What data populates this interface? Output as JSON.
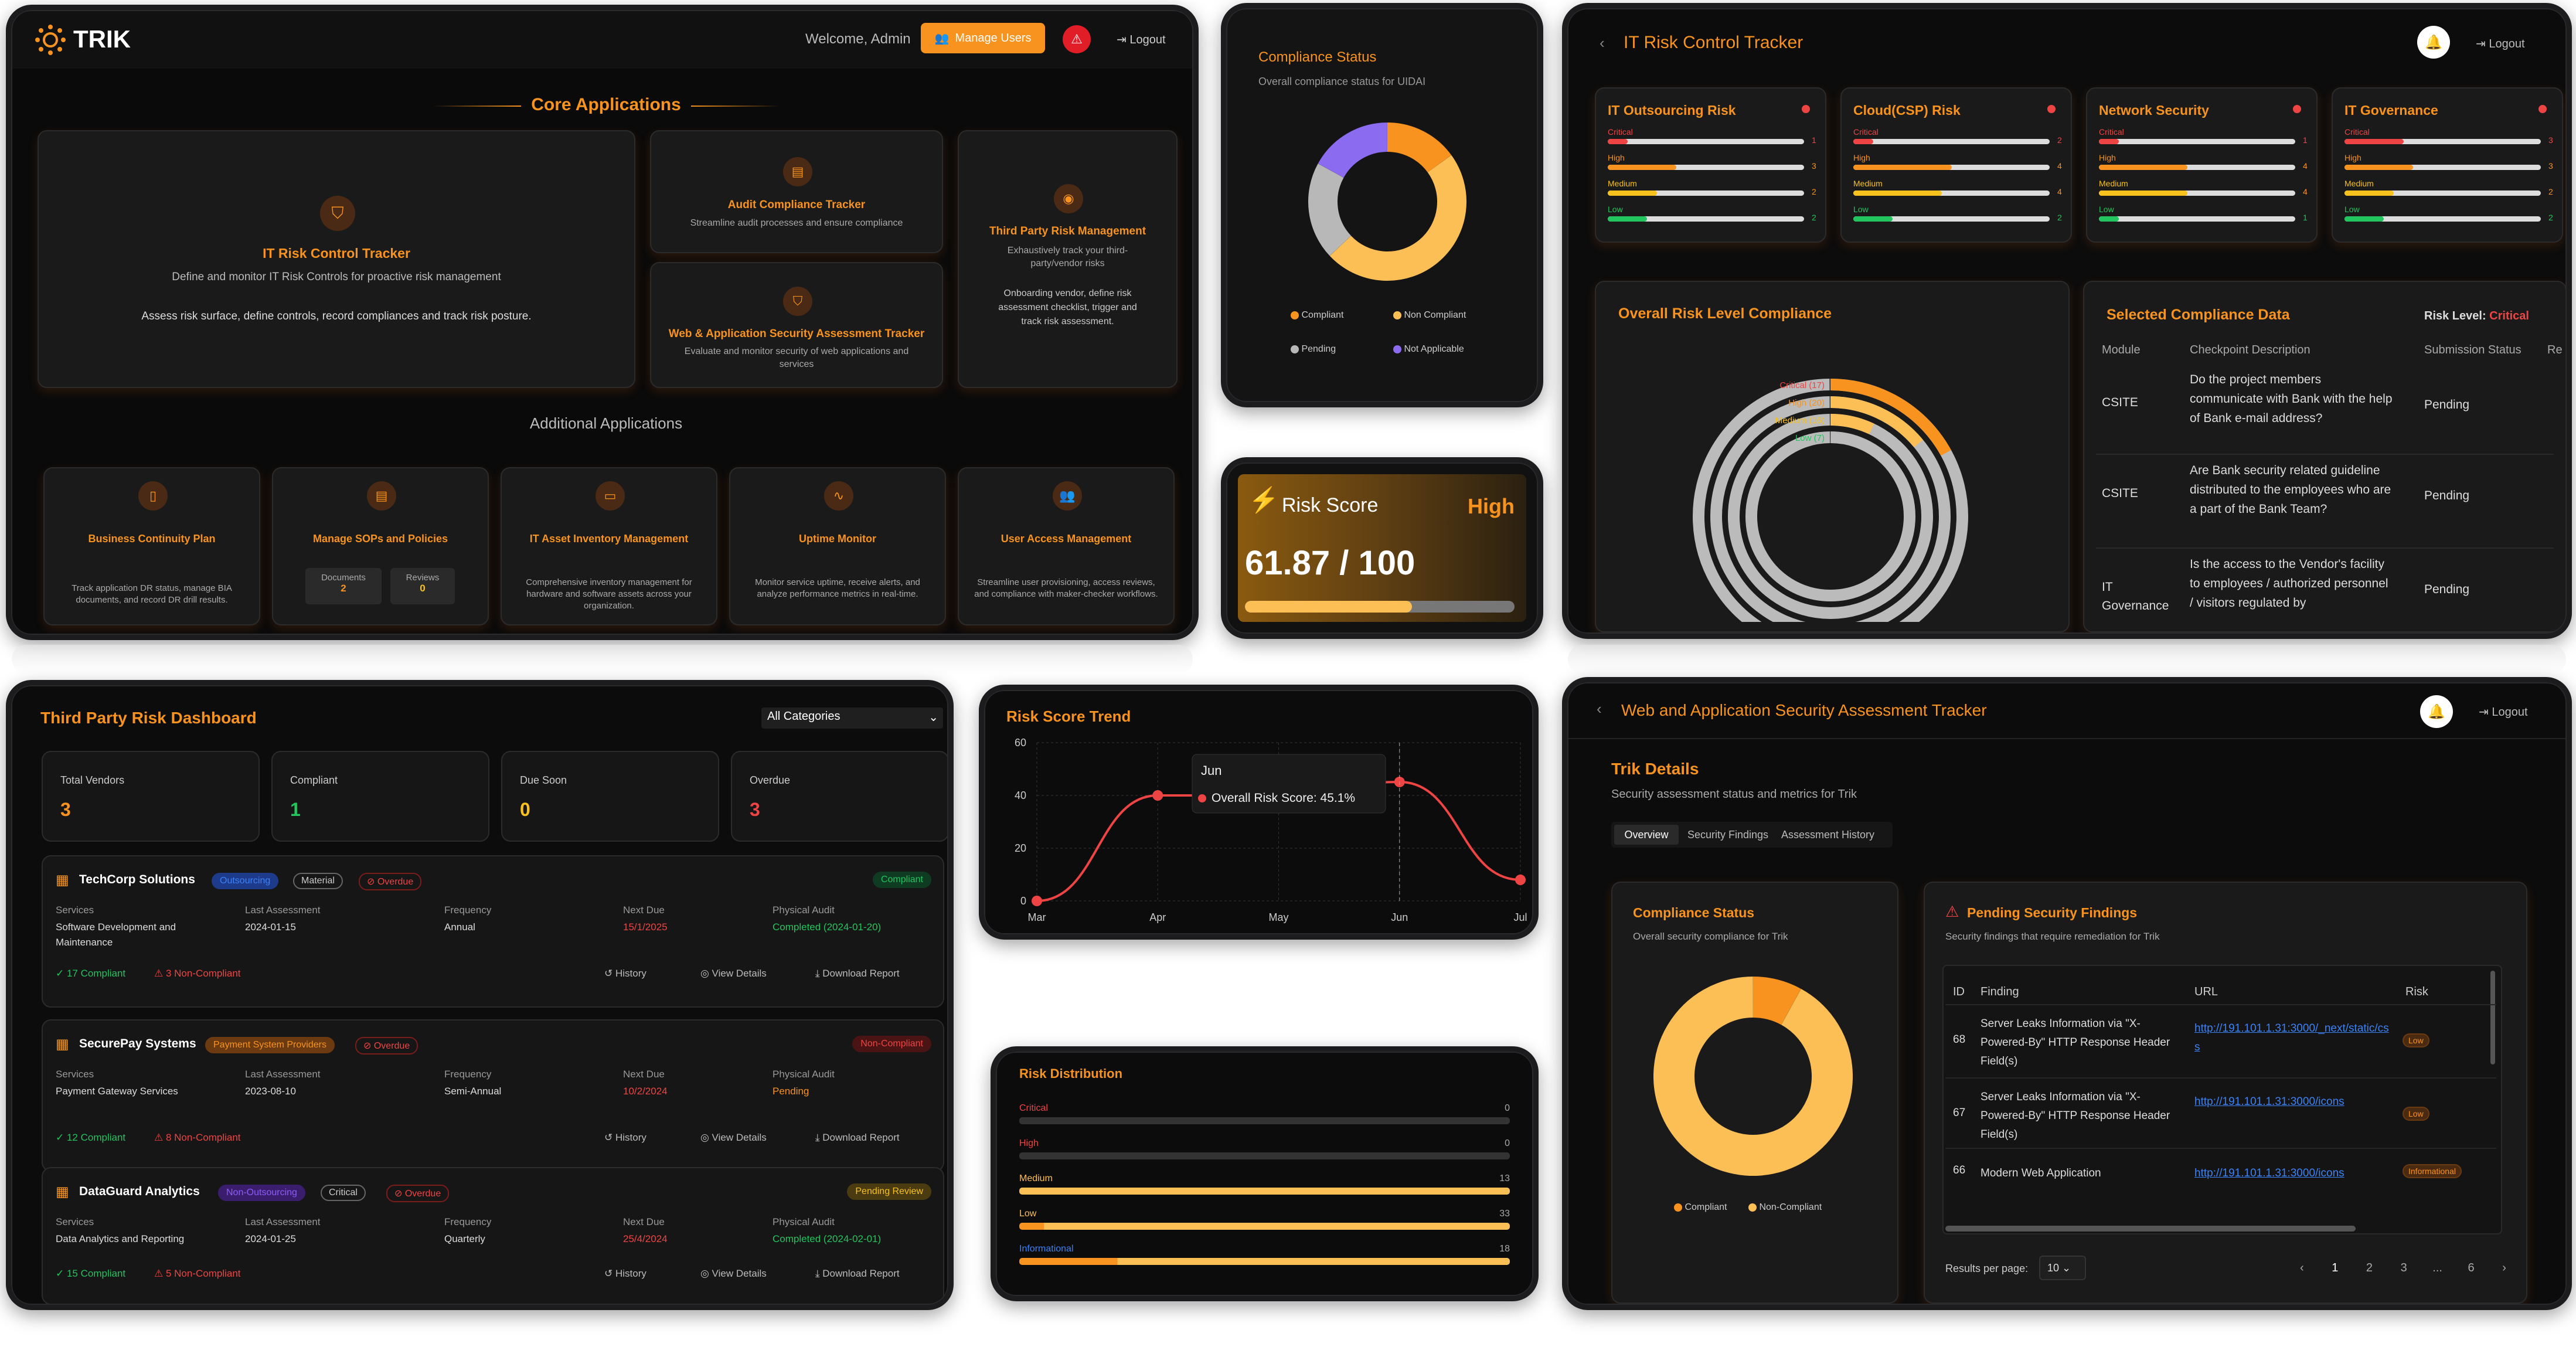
{
  "s1": {
    "brand": "TRIK",
    "welcome": "Welcome, Admin",
    "manage_users": "Manage Users",
    "logout": "Logout",
    "core_title": "Core Applications",
    "additional_title": "Additional Applications",
    "irct": {
      "title": "IT Risk Control Tracker",
      "desc1": "Define and monitor IT Risk Controls for proactive risk management",
      "desc2": "Assess risk surface, define controls, record compliances and track risk posture."
    },
    "audit": {
      "title": "Audit Compliance Tracker",
      "desc": "Streamline audit processes and ensure compliance"
    },
    "waps": {
      "title": "Web & Application Security Assessment Tracker",
      "desc": "Evaluate and monitor security of web applications and services"
    },
    "tprm": {
      "title": "Third Party Risk Management",
      "desc1": "Exhaustively track your third-party/vendor risks",
      "desc2": "Onboarding vendor, define risk assessment checklist, trigger and track risk assessment."
    },
    "apps": [
      {
        "title": "Business Continuity Plan",
        "desc": "Track application DR status, manage BIA documents, and record DR drill results."
      },
      {
        "title": "Manage SOPs and Policies",
        "docs_label": "Documents",
        "docs_val": "2",
        "rev_label": "Reviews",
        "rev_val": "0"
      },
      {
        "title": "IT Asset Inventory Management",
        "desc": "Comprehensive inventory management for hardware and software assets across your organization."
      },
      {
        "title": "Uptime Monitor",
        "desc": "Monitor service uptime, receive alerts, and analyze performance metrics in real-time."
      },
      {
        "title": "User Access Management",
        "desc": "Streamline user provisioning, access reviews, and compliance with maker-checker workflows."
      }
    ]
  },
  "s2": {
    "title": "Compliance Status",
    "subtitle": "Overall compliance status for UIDAI",
    "legend": [
      "Compliant",
      "Non Compliant",
      "Pending",
      "Not Applicable"
    ],
    "colors": [
      "#f7931e",
      "#fbbf56",
      "#b8b8b8",
      "#8b6cf0"
    ],
    "chart_data": {
      "type": "pie",
      "categories": [
        "Compliant",
        "Non Compliant",
        "Pending",
        "Not Applicable"
      ],
      "values": [
        15,
        48,
        20,
        17
      ]
    }
  },
  "s3": {
    "label": "Risk Score",
    "level": "High",
    "score": "61.87 / 100",
    "fill": 0.6187
  },
  "s4": {
    "title": "IT Risk Control Tracker",
    "logout": "Logout",
    "cards": [
      {
        "title": "IT Outsourcing Risk",
        "vals": [
          "1",
          "3",
          "2",
          "2"
        ],
        "fills": [
          0.1,
          0.35,
          0.25,
          0.2
        ]
      },
      {
        "title": "Cloud(CSP) Risk",
        "vals": [
          "2",
          "4",
          "4",
          "2"
        ],
        "fills": [
          0.1,
          0.5,
          0.45,
          0.2
        ]
      },
      {
        "title": "Network Security",
        "vals": [
          "1",
          "4",
          "4",
          "1"
        ],
        "fills": [
          0.1,
          0.45,
          0.45,
          0.1
        ]
      },
      {
        "title": "IT Governance",
        "vals": [
          "3",
          "3",
          "2",
          "2"
        ],
        "fills": [
          0.3,
          0.35,
          0.25,
          0.2
        ]
      }
    ],
    "levels": [
      "Critical",
      "High",
      "Medium",
      "Low"
    ],
    "overall_title": "Overall Risk Level Compliance",
    "ring_labels": [
      "Critical (17)",
      "High (20)",
      "Medium (16)",
      "Low (7)"
    ],
    "chart_data": {
      "type": "pie",
      "categories": [
        "Critical",
        "High",
        "Medium",
        "Low"
      ],
      "values": [
        17,
        20,
        16,
        7
      ]
    },
    "sel_title": "Selected Compliance Data",
    "risk_level_label": "Risk Level:",
    "risk_level_val": "Critical",
    "cols": [
      "Module",
      "Checkpoint Description",
      "Submission Status",
      "Re"
    ],
    "rows": [
      {
        "module": "CSITE",
        "desc": "Do the project members communicate with Bank with the help of Bank e-mail address?",
        "status": "Pending"
      },
      {
        "module": "CSITE",
        "desc": "Are Bank security related guideline distributed to the employees who are a part of the Bank Team?",
        "status": "Pending"
      },
      {
        "module": "IT Governance",
        "desc": "Is the access to the Vendor's facility to employees / authorized personnel / visitors regulated by",
        "status": "Pending"
      }
    ]
  },
  "s5": {
    "title": "Third Party Risk Dashboard",
    "filter": "All Categories",
    "stats": [
      {
        "label": "Total Vendors",
        "val": "3",
        "color": "#f7931e"
      },
      {
        "label": "Compliant",
        "val": "1",
        "color": "#22c55e"
      },
      {
        "label": "Due Soon",
        "val": "0",
        "color": "#f7c21e"
      },
      {
        "label": "Overdue",
        "val": "3",
        "color": "#ef4444"
      }
    ],
    "cols": [
      "Services",
      "Last Assessment",
      "Frequency",
      "Next Due",
      "Physical Audit"
    ],
    "actions": [
      "History",
      "View Details",
      "Download Report"
    ],
    "vendors": [
      {
        "name": "TechCorp Solutions",
        "tag1": "Outsourcing",
        "tag2": "Material",
        "tag3": "Overdue",
        "status": "Compliant",
        "services": "Software Development and Maintenance",
        "last": "2024-01-15",
        "freq": "Annual",
        "next": "15/1/2025",
        "audit": "Completed (2024-01-20)",
        "comp": "17 Compliant",
        "noncomp": "3 Non-Compliant"
      },
      {
        "name": "SecurePay Systems",
        "tag1": "Payment System Providers",
        "tag2": "",
        "tag3": "Overdue",
        "status": "Non-Compliant",
        "services": "Payment Gateway Services",
        "last": "2023-08-10",
        "freq": "Semi-Annual",
        "next": "10/2/2024",
        "audit": "Pending",
        "comp": "12 Compliant",
        "noncomp": "8 Non-Compliant"
      },
      {
        "name": "DataGuard Analytics",
        "tag1": "Non-Outsourcing",
        "tag2": "Critical",
        "tag3": "Overdue",
        "status": "Pending Review",
        "services": "Data Analytics and Reporting",
        "last": "2024-01-25",
        "freq": "Quarterly",
        "next": "25/4/2024",
        "audit": "Completed (2024-02-01)",
        "comp": "15 Compliant",
        "noncomp": "5 Non-Compliant"
      }
    ]
  },
  "s6": {
    "title": "Risk Score Trend",
    "tooltip_title": "Jun",
    "tooltip_text": "Overall Risk Score: 45.1%",
    "chart_data": {
      "type": "line",
      "categories": [
        "Mar",
        "Apr",
        "May",
        "Jun",
        "Jul"
      ],
      "series": [
        {
          "name": "Overall Risk Score",
          "values": [
            0,
            40,
            40,
            45.1,
            8
          ]
        }
      ],
      "ylim": [
        0,
        60
      ],
      "yticks": [
        "0",
        "20",
        "40",
        "60"
      ]
    }
  },
  "s7": {
    "title": "Risk Distribution",
    "chart_data": {
      "type": "bar",
      "categories": [
        "Critical",
        "High",
        "Medium",
        "Low",
        "Informational"
      ],
      "values": [
        0,
        0,
        13,
        33,
        18
      ]
    },
    "max": 33,
    "fills": [
      0,
      0,
      1.0,
      1.0,
      1.0
    ]
  },
  "s8": {
    "title": "Web and Application Security Assessment Tracker",
    "logout": "Logout",
    "details_title": "Trik Details",
    "details_sub": "Security assessment status and metrics for Trik",
    "tabs": [
      "Overview",
      "Security Findings",
      "Assessment History"
    ],
    "comp_title": "Compliance Status",
    "comp_sub": "Overall security compliance for Trik",
    "legend": [
      "Compliant",
      "Non-Compliant"
    ],
    "chart_data": {
      "type": "pie",
      "categories": [
        "Compliant",
        "Non-Compliant"
      ],
      "values": [
        8,
        92
      ]
    },
    "pend_title": "Pending Security Findings",
    "pend_sub": "Security findings that require remediation for Trik",
    "cols": [
      "ID",
      "Finding",
      "URL",
      "Risk"
    ],
    "rows": [
      {
        "id": "68",
        "finding": "Server Leaks Information via \"X-Powered-By\" HTTP Response Header Field(s)",
        "url": "http://191.101.1.31:3000/_next/static/css",
        "risk": "Low"
      },
      {
        "id": "67",
        "finding": "Server Leaks Information via \"X-Powered-By\" HTTP Response Header Field(s)",
        "url": "http://191.101.1.31:3000/icons",
        "risk": "Low"
      },
      {
        "id": "66",
        "finding": "Modern Web Application",
        "url": "http://191.101.1.31:3000/icons",
        "risk": "Informational"
      }
    ],
    "rpp_label": "Results per page:",
    "rpp_val": "10",
    "pages": [
      "1",
      "2",
      "3",
      "...",
      "6"
    ]
  }
}
